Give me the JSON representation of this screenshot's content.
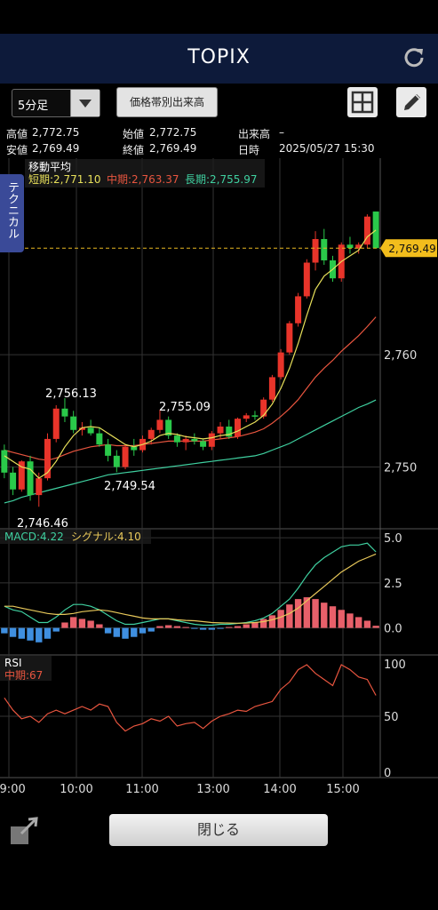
{
  "header": {
    "title": "TOPIX"
  },
  "toolbar": {
    "interval": "5分足",
    "volume_button": "価格帯別出来高"
  },
  "info": {
    "high_label": "高値",
    "high": "2,772.75",
    "open_label": "始値",
    "open": "2,772.75",
    "volume_label": "出来高",
    "volume": "–",
    "low_label": "安値",
    "low": "2,769.49",
    "close_label": "終値",
    "close": "2,769.49",
    "datetime_label": "日時",
    "datetime": "2025/05/27 15:30"
  },
  "side_tab": "テクニカル",
  "close_button": "閉じる",
  "chart_data": {
    "type": "candlestick",
    "x_ticks": [
      "09:00",
      "10:00",
      "11:00",
      "13:00",
      "14:00",
      "15:00"
    ],
    "price_panel": {
      "title": "移動平均",
      "legend": [
        {
          "label": "短期:2,771.10",
          "color": "#e8e05a"
        },
        {
          "label": "中期:2,763.37",
          "color": "#e8553f"
        },
        {
          "label": "長期:2,755.97",
          "color": "#3fd0a0"
        }
      ],
      "y_ticks": [
        "2,760",
        "2,750"
      ],
      "ylim": [
        2744.5,
        2777.5
      ],
      "current_price": "2,769.49",
      "annotations": [
        "2,756.13",
        "2,755.09",
        "2,749.54",
        "2,746.46"
      ],
      "candles": [
        [
          2751.5,
          2752.0,
          2749.0,
          2749.5
        ],
        [
          2749.5,
          2750.0,
          2747.5,
          2748.0
        ],
        [
          2748.0,
          2750.6,
          2747.8,
          2750.5
        ],
        [
          2750.5,
          2751.0,
          2747.0,
          2747.5
        ],
        [
          2747.5,
          2749.5,
          2746.46,
          2749.0
        ],
        [
          2749.0,
          2753.0,
          2748.8,
          2752.5
        ],
        [
          2752.5,
          2755.5,
          2752.2,
          2755.2
        ],
        [
          2755.2,
          2756.13,
          2754.0,
          2754.5
        ],
        [
          2754.5,
          2755.0,
          2753.0,
          2753.3
        ],
        [
          2753.3,
          2754.0,
          2752.8,
          2753.5
        ],
        [
          2753.5,
          2754.2,
          2752.8,
          2753.0
        ],
        [
          2753.0,
          2753.5,
          2751.8,
          2752.0
        ],
        [
          2752.0,
          2752.5,
          2750.5,
          2751.0
        ],
        [
          2751.0,
          2751.5,
          2749.54,
          2750.0
        ],
        [
          2750.0,
          2752.0,
          2749.8,
          2751.8
        ],
        [
          2751.8,
          2752.5,
          2751.0,
          2751.5
        ],
        [
          2751.5,
          2752.8,
          2751.3,
          2752.5
        ],
        [
          2752.5,
          2753.5,
          2752.0,
          2753.3
        ],
        [
          2753.3,
          2755.09,
          2753.0,
          2754.2
        ],
        [
          2754.2,
          2754.5,
          2752.5,
          2752.8
        ],
        [
          2752.8,
          2753.0,
          2751.8,
          2752.2
        ],
        [
          2752.2,
          2752.8,
          2751.5,
          2752.5
        ],
        [
          2752.5,
          2753.0,
          2752.0,
          2752.3
        ],
        [
          2752.3,
          2752.5,
          2751.5,
          2751.8
        ],
        [
          2751.8,
          2753.2,
          2751.5,
          2753.0
        ],
        [
          2753.0,
          2754.0,
          2752.5,
          2753.6
        ],
        [
          2753.6,
          2754.2,
          2752.5,
          2752.7
        ],
        [
          2752.7,
          2754.4,
          2752.5,
          2754.3
        ],
        [
          2754.3,
          2754.8,
          2754.0,
          2754.6
        ],
        [
          2754.6,
          2755.0,
          2754.2,
          2754.5
        ],
        [
          2754.5,
          2756.2,
          2754.3,
          2756.0
        ],
        [
          2756.0,
          2758.2,
          2755.8,
          2758.0
        ],
        [
          2758.0,
          2760.5,
          2757.8,
          2760.2
        ],
        [
          2760.2,
          2763.0,
          2760.0,
          2762.8
        ],
        [
          2762.8,
          2765.5,
          2762.5,
          2765.2
        ],
        [
          2765.2,
          2768.5,
          2765.0,
          2768.2
        ],
        [
          2768.2,
          2771.0,
          2767.5,
          2770.3
        ],
        [
          2770.3,
          2771.2,
          2768.0,
          2768.4
        ],
        [
          2768.4,
          2768.8,
          2766.5,
          2766.8
        ],
        [
          2766.8,
          2770.0,
          2766.5,
          2769.8
        ],
        [
          2769.8,
          2770.5,
          2769.0,
          2769.5
        ],
        [
          2769.5,
          2770.0,
          2769.0,
          2769.8
        ],
        [
          2769.8,
          2772.5,
          2769.5,
          2772.3
        ],
        [
          2772.75,
          2772.75,
          2769.49,
          2769.49
        ]
      ],
      "ma_short": [
        2751.0,
        2750.5,
        2750.0,
        2749.8,
        2749.0,
        2749.5,
        2750.5,
        2751.8,
        2752.8,
        2753.5,
        2753.6,
        2753.5,
        2753.0,
        2752.5,
        2752.0,
        2751.8,
        2752.0,
        2752.3,
        2752.8,
        2753.0,
        2752.9,
        2752.7,
        2752.6,
        2752.5,
        2752.6,
        2752.8,
        2752.9,
        2753.2,
        2753.6,
        2754.0,
        2754.6,
        2755.6,
        2757.0,
        2758.8,
        2761.0,
        2763.5,
        2765.8,
        2767.0,
        2767.6,
        2768.3,
        2768.8,
        2769.3,
        2770.5,
        2771.1
      ],
      "ma_mid": [
        2751.5,
        2751.3,
        2751.1,
        2750.9,
        2750.7,
        2750.6,
        2750.8,
        2751.1,
        2751.4,
        2751.6,
        2751.8,
        2751.9,
        2752.0,
        2751.9,
        2751.9,
        2751.9,
        2752.0,
        2752.1,
        2752.2,
        2752.3,
        2752.3,
        2752.3,
        2752.3,
        2752.3,
        2752.4,
        2752.5,
        2752.6,
        2752.7,
        2752.9,
        2753.1,
        2753.4,
        2753.9,
        2754.5,
        2755.2,
        2756.0,
        2757.0,
        2758.0,
        2758.8,
        2759.5,
        2760.3,
        2761.0,
        2761.7,
        2762.5,
        2763.37
      ],
      "ma_long": [
        2746.8,
        2747.0,
        2747.3,
        2747.5,
        2747.7,
        2747.9,
        2748.1,
        2748.3,
        2748.5,
        2748.7,
        2748.9,
        2749.1,
        2749.3,
        2749.4,
        2749.5,
        2749.6,
        2749.7,
        2749.8,
        2749.9,
        2750.0,
        2750.1,
        2750.2,
        2750.3,
        2750.4,
        2750.5,
        2750.6,
        2750.7,
        2750.8,
        2750.9,
        2751.0,
        2751.2,
        2751.5,
        2751.8,
        2752.1,
        2752.5,
        2752.9,
        2753.3,
        2753.7,
        2754.1,
        2754.5,
        2754.9,
        2755.3,
        2755.6,
        2755.97
      ]
    },
    "macd_panel": {
      "legend": [
        {
          "label": "MACD:4.22",
          "color": "#3fd0a0"
        },
        {
          "label": "シグナル:4.10",
          "color": "#e8c85a"
        }
      ],
      "y_ticks": [
        "5.0",
        "2.5",
        "0.0"
      ],
      "ylim": [
        -1.5,
        5.5
      ],
      "macd": [
        1.2,
        1.0,
        0.9,
        0.6,
        0.3,
        0.3,
        0.6,
        1.0,
        1.3,
        1.3,
        1.2,
        1.0,
        0.7,
        0.4,
        0.2,
        0.2,
        0.3,
        0.4,
        0.5,
        0.5,
        0.4,
        0.3,
        0.2,
        0.15,
        0.15,
        0.2,
        0.2,
        0.25,
        0.3,
        0.4,
        0.55,
        0.8,
        1.2,
        1.6,
        2.2,
        2.9,
        3.5,
        3.9,
        4.2,
        4.5,
        4.6,
        4.6,
        4.7,
        4.22
      ],
      "signal": [
        1.2,
        1.2,
        1.1,
        1.0,
        0.9,
        0.8,
        0.75,
        0.75,
        0.8,
        0.9,
        0.95,
        1.0,
        0.95,
        0.85,
        0.75,
        0.65,
        0.55,
        0.5,
        0.5,
        0.5,
        0.45,
        0.42,
        0.4,
        0.35,
        0.3,
        0.28,
        0.27,
        0.26,
        0.27,
        0.3,
        0.35,
        0.45,
        0.6,
        0.8,
        1.1,
        1.5,
        1.9,
        2.3,
        2.7,
        3.1,
        3.4,
        3.7,
        3.9,
        4.1
      ],
      "hist": [
        -0.3,
        -0.5,
        -0.6,
        -0.7,
        -0.8,
        -0.6,
        -0.2,
        0.3,
        0.6,
        0.5,
        0.4,
        0.2,
        -0.3,
        -0.5,
        -0.6,
        -0.5,
        -0.3,
        -0.2,
        0.1,
        0.15,
        0.1,
        0.05,
        -0.05,
        -0.1,
        -0.1,
        -0.05,
        0.05,
        0.1,
        0.2,
        0.3,
        0.5,
        0.7,
        1.0,
        1.3,
        1.6,
        1.7,
        1.6,
        1.4,
        1.2,
        1.0,
        0.8,
        0.6,
        0.4,
        0.12
      ]
    },
    "rsi_panel": {
      "legend": [
        {
          "label": "中期:67",
          "color": "#e8553f"
        }
      ],
      "title": "RSI",
      "y_ticks": [
        "100",
        "50",
        "0"
      ],
      "ylim": [
        0,
        100
      ],
      "values": [
        65,
        55,
        48,
        50,
        45,
        52,
        55,
        52,
        55,
        58,
        55,
        60,
        58,
        45,
        38,
        42,
        44,
        48,
        46,
        50,
        42,
        44,
        45,
        40,
        46,
        50,
        52,
        55,
        54,
        58,
        60,
        62,
        72,
        78,
        88,
        92,
        85,
        80,
        75,
        92,
        88,
        82,
        80,
        67
      ]
    }
  }
}
